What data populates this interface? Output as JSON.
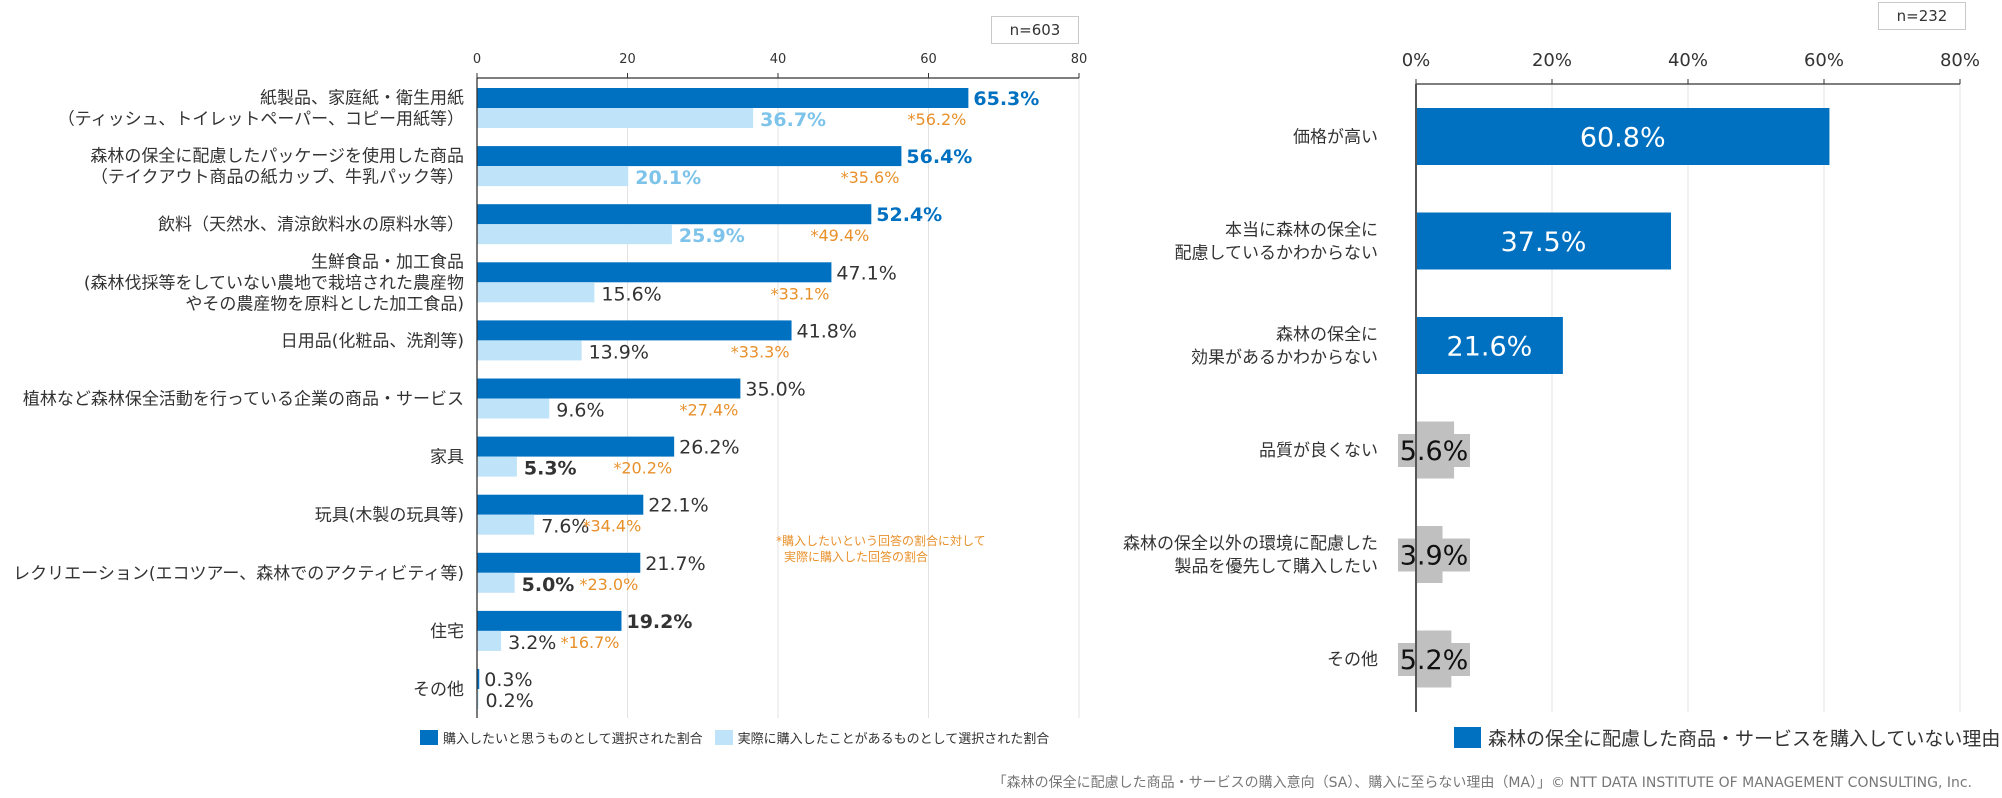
{
  "chart_data": [
    {
      "type": "bar",
      "orientation": "horizontal",
      "sample_size_label": "n=603",
      "categories": [
        [
          "紙製品、家庭紙・衛生用紙",
          "（ティッシュ、トイレットペーパー、コピー用紙等）"
        ],
        [
          "森林の保全に配慮したパッケージを使用した商品",
          "（テイクアウト商品の紙カップ、牛乳パック等）"
        ],
        [
          "飲料（天然水、清涼飲料水の原料水等）"
        ],
        [
          "生鮮食品・加工食品",
          "(森林伐採等をしていない農地で栽培された農産物",
          "やその農産物を原料とした加工食品)"
        ],
        [
          "日用品(化粧品、洗剤等)"
        ],
        [
          "植林など森林保全活動を行っている企業の商品・サービス"
        ],
        [
          "家具"
        ],
        [
          "玩具(木製の玩具等)"
        ],
        [
          "レクリエーション(エコツアー、森林でのアクティビティ等)"
        ],
        [
          "住宅"
        ],
        [
          "その他"
        ]
      ],
      "series": [
        {
          "name": "購入したいと思うものとして選択された割合",
          "color": "#0070c0",
          "values": [
            65.3,
            56.4,
            52.4,
            47.1,
            41.8,
            35.0,
            26.2,
            22.1,
            21.7,
            19.2,
            0.3
          ],
          "labels": [
            "65.3%",
            "56.4%",
            "52.4%",
            "47.1%",
            "41.8%",
            "35.0%",
            "26.2%",
            "22.1%",
            "21.7%",
            "19.2%",
            "0.3%"
          ],
          "label_styles": [
            "bold-blue",
            "bold-blue",
            "bold-blue",
            "normal",
            "normal",
            "normal",
            "normal",
            "normal",
            "normal",
            "bold-dark",
            "normal"
          ]
        },
        {
          "name": "実際に購入したことがあるものとして選択された割合",
          "color": "#bfe3f8",
          "values": [
            36.7,
            20.1,
            25.9,
            15.6,
            13.9,
            9.6,
            5.3,
            7.6,
            5.0,
            3.2,
            0.2
          ],
          "labels": [
            "36.7%",
            "20.1%",
            "25.9%",
            "15.6%",
            "13.9%",
            "9.6%",
            "5.3%",
            "7.6%",
            "5.0%",
            "3.2%",
            "0.2%"
          ],
          "label_styles": [
            "bold-light",
            "bold-light",
            "bold-light",
            "normal",
            "normal",
            "normal",
            "bold-dark",
            "normal",
            "bold-dark",
            "normal",
            "normal"
          ]
        }
      ],
      "ratio_labels": [
        "*56.2%",
        "*35.6%",
        "*49.4%",
        "*33.1%",
        "*33.3%",
        "*27.4%",
        "*20.2%",
        "*34.4%",
        "*23.0%",
        "*16.7%",
        null
      ],
      "ratio_color": "#e8902a",
      "annotation": [
        "*購入したいという回答の割合に対して",
        "実際に購入した回答の割合"
      ],
      "xaxis": {
        "ticks": [
          0,
          20,
          40,
          60,
          80
        ],
        "tick_labels": [
          "0",
          "20",
          "40",
          "60",
          "80"
        ],
        "range": [
          0,
          80
        ],
        "position": "top"
      },
      "grid": true,
      "legend_position": "bottom"
    },
    {
      "type": "bar",
      "orientation": "horizontal",
      "sample_size_label": "n=232",
      "categories": [
        [
          "価格が高い"
        ],
        [
          "本当に森林の保全に",
          "配慮しているかわからない"
        ],
        [
          "森林の保全に",
          "効果があるかわからない"
        ],
        [
          "品質が良くない"
        ],
        [
          "森林の保全以外の環境に配慮した",
          "製品を優先して購入したい"
        ],
        [
          "その他"
        ]
      ],
      "series": [
        {
          "name": "森林の保全に配慮した商品・サービスを購入していない理由",
          "color": "#0070c0",
          "values": [
            60.8,
            37.5,
            21.6,
            5.6,
            3.9,
            5.2
          ],
          "labels": [
            "60.8%",
            "37.5%",
            "21.6%",
            "5.6%",
            "3.9%",
            "5.2%"
          ],
          "bar_colors": [
            "#0070c0",
            "#0070c0",
            "#0070c0",
            "#c0c0c0",
            "#c0c0c0",
            "#c0c0c0"
          ]
        }
      ],
      "xaxis": {
        "ticks": [
          0,
          20,
          40,
          60,
          80
        ],
        "tick_labels": [
          "0%",
          "20%",
          "40%",
          "60%",
          "80%"
        ],
        "range": [
          0,
          80
        ],
        "position": "top"
      },
      "grid": true,
      "legend_position": "bottom-right"
    }
  ],
  "footer": "「森林の保全に配慮した商品・サービスの購入意向（SA）、購入に至らない理由（MA）」© NTT DATA INSTITUTE OF MANAGEMENT CONSULTING, Inc."
}
